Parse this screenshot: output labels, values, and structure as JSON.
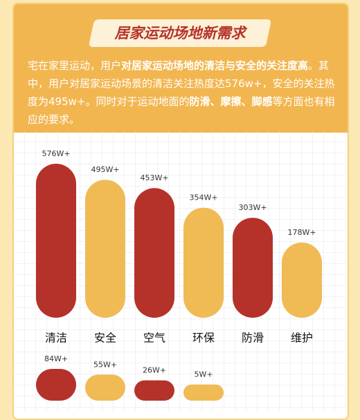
{
  "chart_data": {
    "type": "bar",
    "title": "居家运动场地新需求",
    "description": [
      {
        "text": "宅在家里运动，用户",
        "bold": false
      },
      {
        "text": "对居家运动场地的清洁与安全的关注度高",
        "bold": true
      },
      {
        "text": "。其中，用户对居家运动场景的清洁关注热度达576w+，安全的关注热度为495w+。同时对于运动地面的",
        "bold": false
      },
      {
        "text": "防滑、摩擦、脚感",
        "bold": true
      },
      {
        "text": "等方面也有相应的要求。",
        "bold": false
      }
    ],
    "categories": [
      "清洁",
      "安全",
      "空气",
      "环保",
      "防滑",
      "维护",
      null,
      null,
      null,
      null
    ],
    "values": [
      576,
      495,
      453,
      354,
      303,
      178,
      84,
      55,
      26,
      5
    ],
    "value_labels": [
      "576W+",
      "495W+",
      "453W+",
      "354W+",
      "303W+",
      "178W+",
      "84W+",
      "55W+",
      "26W+",
      "5W+"
    ],
    "colors": [
      "#b5322a",
      "#f0ba55",
      "#b5322a",
      "#f0ba55",
      "#b5322a",
      "#f0ba55",
      "#b5322a",
      "#f0ba55",
      "#b5322a",
      "#f0ba55"
    ]
  }
}
